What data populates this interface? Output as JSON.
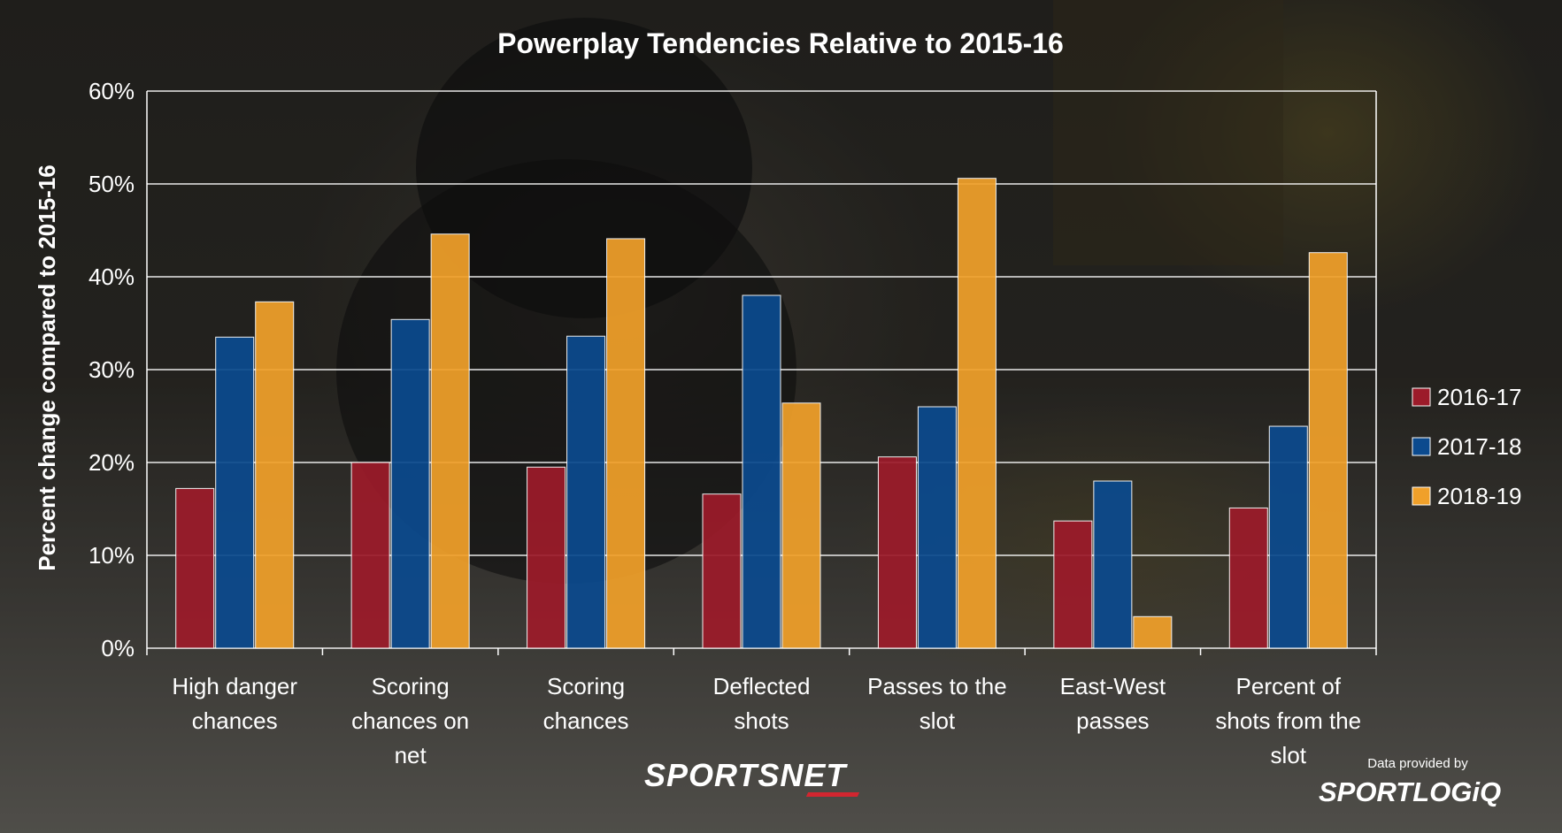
{
  "chart_data": {
    "type": "bar",
    "title": "Powerplay Tendencies Relative to 2015-16",
    "ylabel": "Percent change compared to 2015-16",
    "xlabel": "",
    "ylim": [
      0,
      60
    ],
    "yticks": [
      "0%",
      "10%",
      "20%",
      "30%",
      "40%",
      "50%",
      "60%"
    ],
    "grid": true,
    "legend_position": "right",
    "categories": [
      [
        "High danger",
        "chances"
      ],
      [
        "Scoring",
        "chances on",
        "net"
      ],
      [
        "Scoring",
        "chances"
      ],
      [
        "Deflected",
        "shots"
      ],
      [
        "Passes to the",
        "slot"
      ],
      [
        "East-West",
        "passes"
      ],
      [
        "Percent of",
        "shots from the",
        "slot"
      ]
    ],
    "series": [
      {
        "name": "2016-17",
        "color": "#9c1b2a",
        "values": [
          17.2,
          20.0,
          19.5,
          16.6,
          20.6,
          13.7,
          15.1
        ]
      },
      {
        "name": "2017-18",
        "color": "#0b4a8e",
        "values": [
          33.5,
          35.4,
          33.6,
          38.0,
          26.0,
          18.0,
          23.9
        ]
      },
      {
        "name": "2018-19",
        "color": "#f0a02a",
        "values": [
          37.3,
          44.6,
          44.1,
          26.4,
          50.6,
          3.4,
          42.6
        ]
      }
    ]
  },
  "branding": {
    "broadcaster": "SPORTSNET",
    "provider_note": "Data provided by",
    "provider_logo": "SPORTLOGiQ"
  }
}
